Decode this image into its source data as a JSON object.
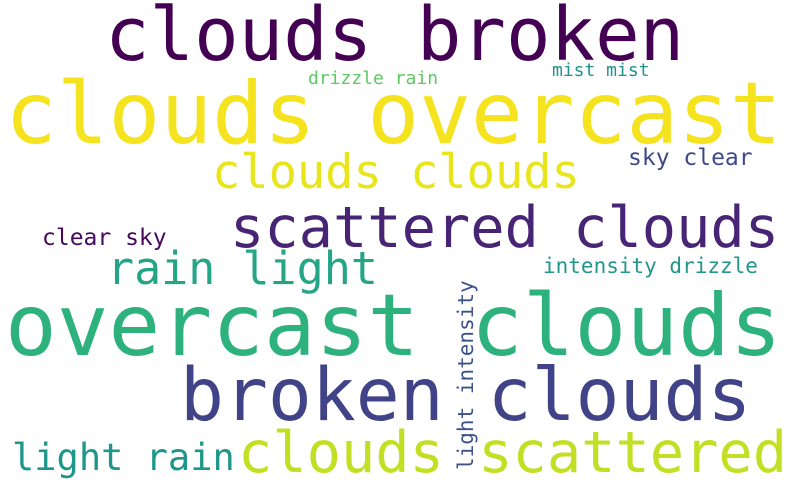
{
  "words": [
    {
      "text": "clouds broken",
      "color": "#440154"
    },
    {
      "text": "clouds overcast",
      "color": "#f5e31f"
    },
    {
      "text": "drizzle rain",
      "color": "#5ec962"
    },
    {
      "text": "mist mist",
      "color": "#21918c"
    },
    {
      "text": "clouds clouds",
      "color": "#e8e51a"
    },
    {
      "text": "sky clear",
      "color": "#3e4989"
    },
    {
      "text": "scattered clouds",
      "color": "#482475"
    },
    {
      "text": "clear sky",
      "color": "#450a5c"
    },
    {
      "text": "rain light",
      "color": "#25a586"
    },
    {
      "text": "intensity drizzle",
      "color": "#23968b"
    },
    {
      "text": "overcast clouds",
      "color": "#2db27d"
    },
    {
      "text": "broken clouds",
      "color": "#404387"
    },
    {
      "text": "light intensity",
      "color": "#3b528b"
    },
    {
      "text": "light rain",
      "color": "#1f968b"
    },
    {
      "text": "clouds scattered",
      "color": "#c2df23"
    }
  ]
}
